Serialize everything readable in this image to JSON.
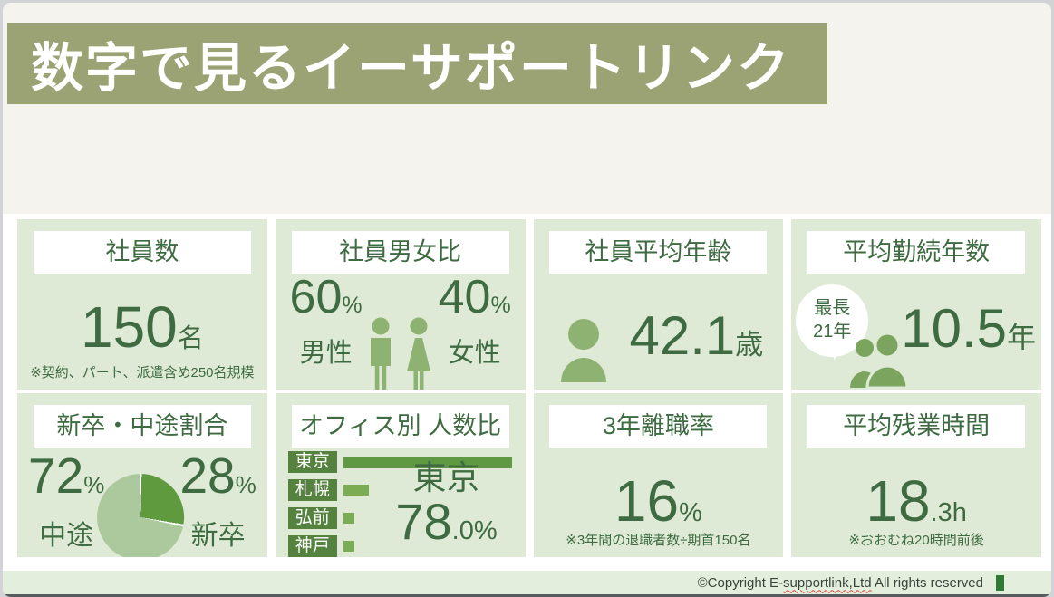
{
  "header": {
    "title": "数字で見るイーサポートリンク"
  },
  "cards": {
    "employees": {
      "title": "社員数",
      "value": "150",
      "unit": "名",
      "note": "※契約、パート、派遣含め250名規模"
    },
    "gender": {
      "title": "社員男女比",
      "male": {
        "value": "60",
        "pct": "%",
        "label": "男性"
      },
      "female": {
        "value": "40",
        "pct": "%",
        "label": "女性"
      }
    },
    "age": {
      "title": "社員平均年齢",
      "value": "42.1",
      "unit": "歳"
    },
    "tenure": {
      "title": "平均勤続年数",
      "value": "10.5",
      "unit": "年",
      "bubble": {
        "line1": "最長",
        "line2": "21年"
      }
    },
    "hires": {
      "title": "新卒・中途割合",
      "mid_career": {
        "value": "72",
        "pct": "%",
        "label": "中途"
      },
      "new_grad": {
        "value": "28",
        "pct": "%",
        "label": "新卒"
      }
    },
    "offices": {
      "title": "オフィス別 人数比",
      "rows": [
        {
          "label": "東京",
          "pct": 78
        },
        {
          "label": "札幌",
          "pct": 12
        },
        {
          "label": "弘前",
          "pct": 5
        },
        {
          "label": "神戸",
          "pct": 5
        }
      ],
      "highlight_name": "東京",
      "highlight_value": "78",
      "highlight_decimal": ".0%"
    },
    "turnover": {
      "title": "3年離職率",
      "value": "16",
      "unit": "%",
      "note": "※3年間の退職者数÷期首150名"
    },
    "overtime": {
      "title": "平均残業時間",
      "value": "18",
      "unit": ".3h",
      "note": "※おおむね20時間前後"
    }
  },
  "footer": {
    "prefix": "©Copyright E-",
    "misspelled": "supportlink,Ltd",
    "suffix": " All rights reserved"
  },
  "icons": {
    "male": "male-pictogram",
    "female": "female-pictogram",
    "person": "person-bust",
    "people": "two-people-busts",
    "speech_bubble": "speech-bubble"
  },
  "colors": {
    "card_bg": "#dfead6",
    "dark_green_text": "#3e6b41",
    "pictogram_green": "#8db271",
    "people_green": "#7ba55e",
    "bar_label_bg": "#55823f",
    "bar_tokyo": "#5f9a43",
    "bar_other": "#7bab52",
    "pie_light": "#abc99c",
    "pie_dark": "#5f9a3f",
    "banner_overlay": "rgba(103,115,46,0.63)",
    "footer_bg": "#e3efdc",
    "footer_square": "#2c7a33"
  },
  "chart_data": [
    {
      "type": "pie",
      "title": "新卒・中途割合",
      "labels": [
        "中途",
        "新卒"
      ],
      "values": [
        72,
        28
      ],
      "colors": [
        "#abc99c",
        "#5f9a3f"
      ],
      "start_angle_deg": 0,
      "direction": "clockwise"
    },
    {
      "type": "bar",
      "title": "オフィス別 人数比",
      "orientation": "horizontal",
      "categories": [
        "東京",
        "札幌",
        "弘前",
        "神戸"
      ],
      "values": [
        78,
        12,
        5,
        5
      ],
      "unit": "%",
      "annotation": "東京 78.0%",
      "xlim": [
        0,
        80
      ]
    }
  ]
}
